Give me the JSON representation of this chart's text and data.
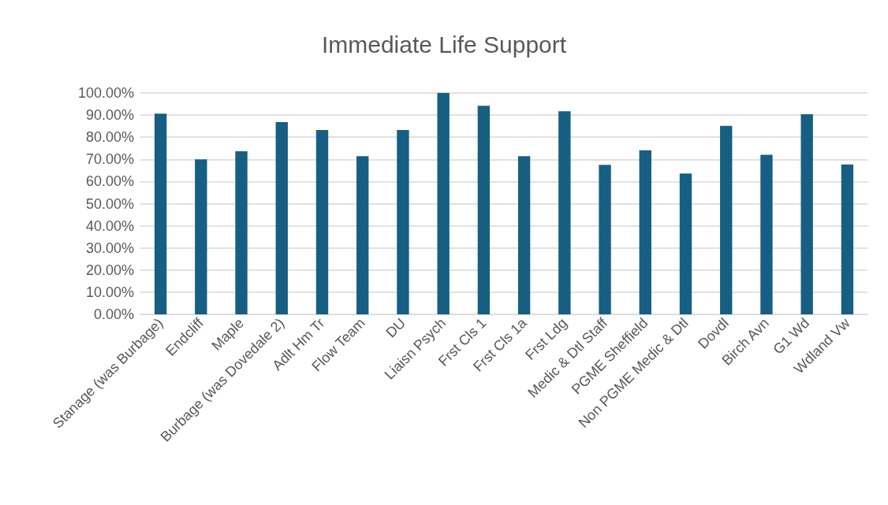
{
  "chart_data": {
    "type": "bar",
    "title": "Immediate Life Support",
    "categories": [
      "Stanage (was Burbage)",
      "Endcliff",
      "Maple",
      "Burbage (was Dovedale 2)",
      "Adlt Hm Tr",
      "Flow Team",
      "DU",
      "Liaisn Psych",
      "Frst Cls 1",
      "Frst Cls 1a",
      "Frst Ldg",
      "Medic & Dtl Staff",
      "PGME Sheffield",
      "Non PGME Medic & Dtl",
      "Dovdl",
      "Birch Avn",
      "G1 Wd",
      "Wdland Vw"
    ],
    "values": [
      90.7,
      70.0,
      73.7,
      86.8,
      83.3,
      71.4,
      83.3,
      100,
      94.2,
      71.4,
      91.7,
      67.5,
      74.1,
      63.6,
      85.1,
      72.1,
      90.4,
      67.7
    ],
    "color": "#175f82",
    "ylim": [
      0,
      100
    ],
    "yticks": [
      {
        "value": 0,
        "label": "0.00%"
      },
      {
        "value": 10,
        "label": "10.00%"
      },
      {
        "value": 20,
        "label": "20.00%"
      },
      {
        "value": 30,
        "label": "30.00%"
      },
      {
        "value": 40,
        "label": "40.00%"
      },
      {
        "value": 50,
        "label": "50.00%"
      },
      {
        "value": 60,
        "label": "60.00%"
      },
      {
        "value": 70,
        "label": "70.00%"
      },
      {
        "value": 80,
        "label": "80.00%"
      },
      {
        "value": 90,
        "label": "90.00%"
      },
      {
        "value": 100,
        "label": "100.00%"
      }
    ],
    "grid": "y"
  }
}
